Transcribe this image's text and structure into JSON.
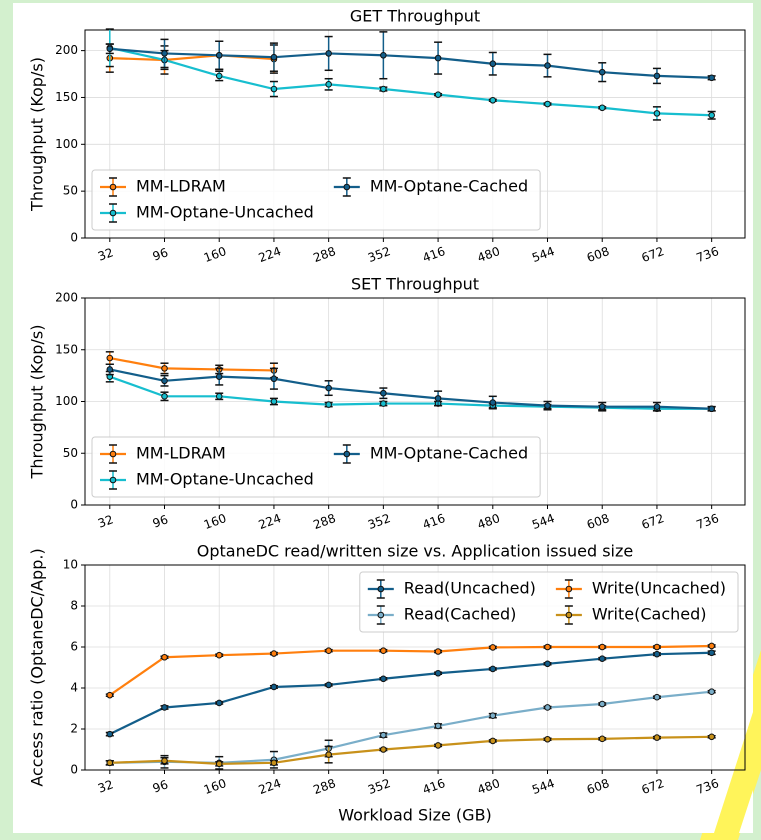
{
  "chart_data": [
    {
      "type": "line",
      "title": "GET Throughput",
      "ylabel": "Throughput (Kop/s)",
      "x": [
        32,
        96,
        160,
        224,
        288,
        352,
        416,
        480,
        544,
        608,
        672,
        736
      ],
      "xlim": [
        3,
        775
      ],
      "xticks": [
        32,
        96,
        160,
        224,
        288,
        352,
        416,
        480,
        544,
        608,
        672,
        736
      ],
      "ylim": [
        0,
        222
      ],
      "yticks": [
        0,
        50,
        100,
        150,
        200
      ],
      "grid": true,
      "legend": "lower left",
      "series": [
        {
          "name": "MM-LDRAM",
          "color": "#ff7f0e",
          "values": [
            192,
            190,
            195,
            191,
            null,
            null,
            null,
            null,
            null,
            null,
            null,
            null
          ],
          "errors": [
            15,
            15,
            15,
            15,
            null,
            null,
            null,
            null,
            null,
            null,
            null,
            null
          ]
        },
        {
          "name": "MM-Optane-Uncached",
          "color": "#17becf",
          "values": [
            203,
            190,
            173,
            159,
            164,
            159,
            153,
            147,
            143,
            139,
            133,
            131
          ],
          "errors": [
            20,
            10,
            5,
            8,
            6,
            2,
            1,
            1,
            1,
            1,
            7,
            4
          ]
        },
        {
          "name": "MM-Optane-Cached",
          "color": "#135e8a",
          "values": [
            202,
            197,
            195,
            193,
            197,
            195,
            192,
            186,
            184,
            177,
            173,
            171
          ],
          "errors": [
            5,
            15,
            15,
            15,
            18,
            25,
            17,
            12,
            12,
            10,
            8,
            2
          ]
        }
      ]
    },
    {
      "type": "line",
      "title": "SET Throughput",
      "ylabel": "Throughput (Kop/s)",
      "x": [
        32,
        96,
        160,
        224,
        288,
        352,
        416,
        480,
        544,
        608,
        672,
        736
      ],
      "xlim": [
        3,
        775
      ],
      "xticks": [
        32,
        96,
        160,
        224,
        288,
        352,
        416,
        480,
        544,
        608,
        672,
        736
      ],
      "ylim": [
        0,
        200
      ],
      "yticks": [
        0,
        50,
        100,
        150,
        200
      ],
      "grid": true,
      "legend": "lower left",
      "series": [
        {
          "name": "MM-LDRAM",
          "color": "#ff7f0e",
          "values": [
            142,
            132,
            131,
            130,
            null,
            null,
            null,
            null,
            null,
            null,
            null,
            null
          ],
          "errors": [
            6,
            5,
            4,
            7,
            null,
            null,
            null,
            null,
            null,
            null,
            null,
            null
          ]
        },
        {
          "name": "MM-Optane-Uncached",
          "color": "#17becf",
          "values": [
            124,
            105,
            105,
            100,
            97,
            98,
            98,
            96,
            95,
            94,
            93,
            93
          ],
          "errors": [
            5,
            4,
            3,
            3,
            2,
            2,
            2,
            2,
            2,
            2,
            2,
            2
          ]
        },
        {
          "name": "MM-Optane-Cached",
          "color": "#135e8a",
          "values": [
            131,
            120,
            124,
            122,
            113,
            108,
            103,
            99,
            96,
            95,
            95,
            93
          ],
          "errors": [
            5,
            5,
            8,
            10,
            7,
            5,
            7,
            6,
            4,
            4,
            4,
            2
          ]
        }
      ]
    },
    {
      "type": "line",
      "title": "OptaneDC read/written size vs. Application issued size",
      "xlabel": "Workload Size (GB)",
      "ylabel": "Access ratio (OptaneDC/App.)",
      "x": [
        32,
        96,
        160,
        224,
        288,
        352,
        416,
        480,
        544,
        608,
        672,
        736
      ],
      "xlim": [
        3,
        775
      ],
      "xticks": [
        32,
        96,
        160,
        224,
        288,
        352,
        416,
        480,
        544,
        608,
        672,
        736
      ],
      "ylim": [
        0,
        10
      ],
      "yticks": [
        0,
        2,
        4,
        6,
        8,
        10
      ],
      "grid": true,
      "legend": "upper right",
      "series": [
        {
          "name": "Read(Uncached)",
          "color": "#135e8a",
          "values": [
            1.75,
            3.05,
            3.27,
            4.05,
            4.15,
            4.45,
            4.72,
            4.93,
            5.18,
            5.43,
            5.65,
            5.72
          ],
          "errors": [
            0.08,
            0.08,
            0.05,
            0.06,
            0.05,
            0.05,
            0.05,
            0.05,
            0.05,
            0.05,
            0.06,
            0.08
          ]
        },
        {
          "name": "Read(Cached)",
          "color": "#7aaec9",
          "values": [
            0.35,
            0.4,
            0.35,
            0.5,
            1.05,
            1.7,
            2.15,
            2.65,
            3.05,
            3.22,
            3.55,
            3.82
          ],
          "errors": [
            0.1,
            0.3,
            0.3,
            0.4,
            0.4,
            0.1,
            0.1,
            0.1,
            0.05,
            0.05,
            0.05,
            0.05
          ]
        },
        {
          "name": "Write(Uncached)",
          "color": "#ff7f0e",
          "values": [
            3.65,
            5.5,
            5.6,
            5.68,
            5.82,
            5.82,
            5.78,
            5.98,
            6.0,
            6.0,
            6.0,
            6.05
          ],
          "errors": [
            0.05,
            0.05,
            0.05,
            0.05,
            0.05,
            0.05,
            0.05,
            0.05,
            0.05,
            0.05,
            0.05,
            0.05
          ]
        },
        {
          "name": "Write(Cached)",
          "color": "#c8911a",
          "values": [
            0.35,
            0.45,
            0.3,
            0.35,
            0.75,
            1.0,
            1.2,
            1.42,
            1.5,
            1.52,
            1.58,
            1.62
          ],
          "errors": [
            0.1,
            0.15,
            0.1,
            0.1,
            0.4,
            0.05,
            0.05,
            0.05,
            0.05,
            0.05,
            0.05,
            0.05
          ]
        }
      ]
    }
  ]
}
